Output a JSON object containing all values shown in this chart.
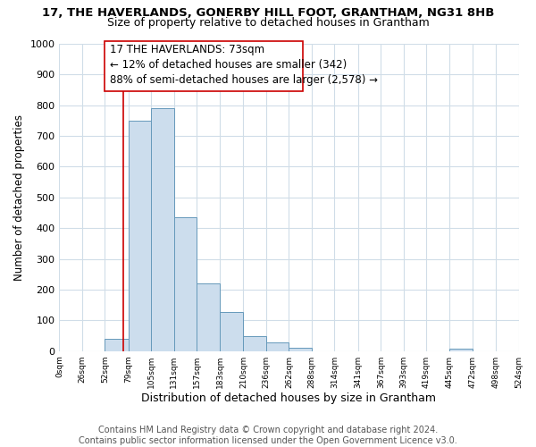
{
  "title": "17, THE HAVERLANDS, GONERBY HILL FOOT, GRANTHAM, NG31 8HB",
  "subtitle": "Size of property relative to detached houses in Grantham",
  "xlabel": "Distribution of detached houses by size in Grantham",
  "ylabel": "Number of detached properties",
  "bar_edges": [
    0,
    26,
    52,
    79,
    105,
    131,
    157,
    183,
    210,
    236,
    262,
    288,
    314,
    341,
    367,
    393,
    419,
    445,
    472,
    498,
    524
  ],
  "bar_heights": [
    0,
    0,
    40,
    750,
    790,
    435,
    220,
    128,
    50,
    27,
    12,
    0,
    0,
    0,
    0,
    0,
    0,
    8,
    0,
    0
  ],
  "bar_color": "#ccdded",
  "bar_edgecolor": "#6699bb",
  "property_line_x": 73,
  "property_line_color": "#cc0000",
  "annotation_line1": "17 THE HAVERLANDS: 73sqm",
  "annotation_line2": "← 12% of detached houses are smaller (342)",
  "annotation_line3": "88% of semi-detached houses are larger (2,578) →",
  "annotation_box_edgecolor": "#cc0000",
  "annotation_fontsize": 8.5,
  "ylim": [
    0,
    1000
  ],
  "yticks": [
    0,
    100,
    200,
    300,
    400,
    500,
    600,
    700,
    800,
    900,
    1000
  ],
  "xtick_labels": [
    "0sqm",
    "26sqm",
    "52sqm",
    "79sqm",
    "105sqm",
    "131sqm",
    "157sqm",
    "183sqm",
    "210sqm",
    "236sqm",
    "262sqm",
    "288sqm",
    "314sqm",
    "341sqm",
    "367sqm",
    "393sqm",
    "419sqm",
    "445sqm",
    "472sqm",
    "498sqm",
    "524sqm"
  ],
  "grid_color": "#d0dde8",
  "background_color": "#ffffff",
  "footer_text": "Contains HM Land Registry data © Crown copyright and database right 2024.\nContains public sector information licensed under the Open Government Licence v3.0.",
  "title_fontsize": 9.5,
  "subtitle_fontsize": 9,
  "xlabel_fontsize": 9,
  "ylabel_fontsize": 8.5,
  "footer_fontsize": 7
}
